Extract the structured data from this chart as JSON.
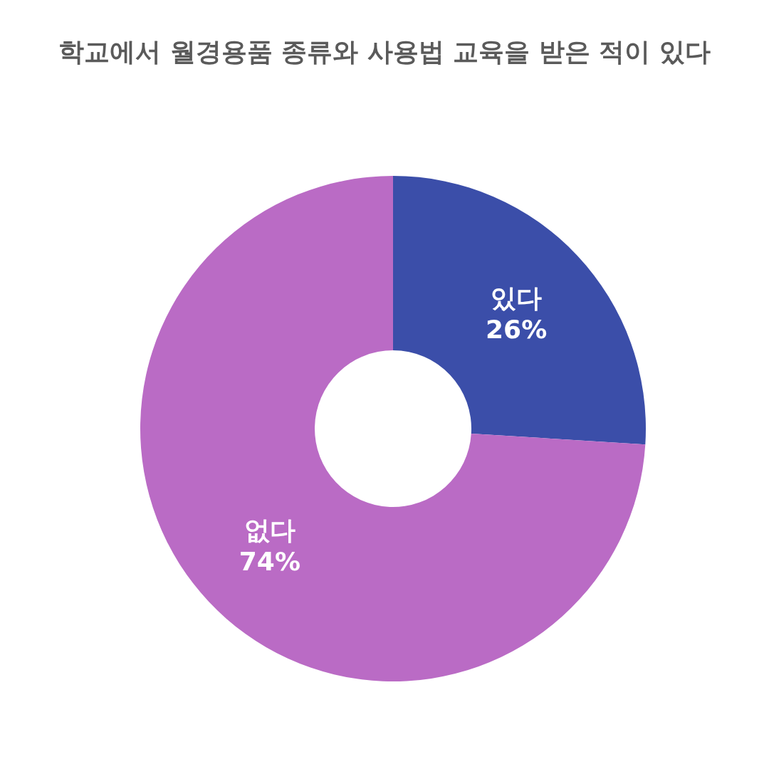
{
  "chart_data": {
    "type": "donut",
    "title": "학교에서 월경용품 종류와 사용법 교육을 받은 적이 있다",
    "categories": [
      "있다",
      "없다"
    ],
    "values": [
      26,
      74
    ],
    "colors": [
      "#3b4ea9",
      "#ba6bc5"
    ],
    "value_labels": [
      "26%",
      "74%"
    ]
  }
}
